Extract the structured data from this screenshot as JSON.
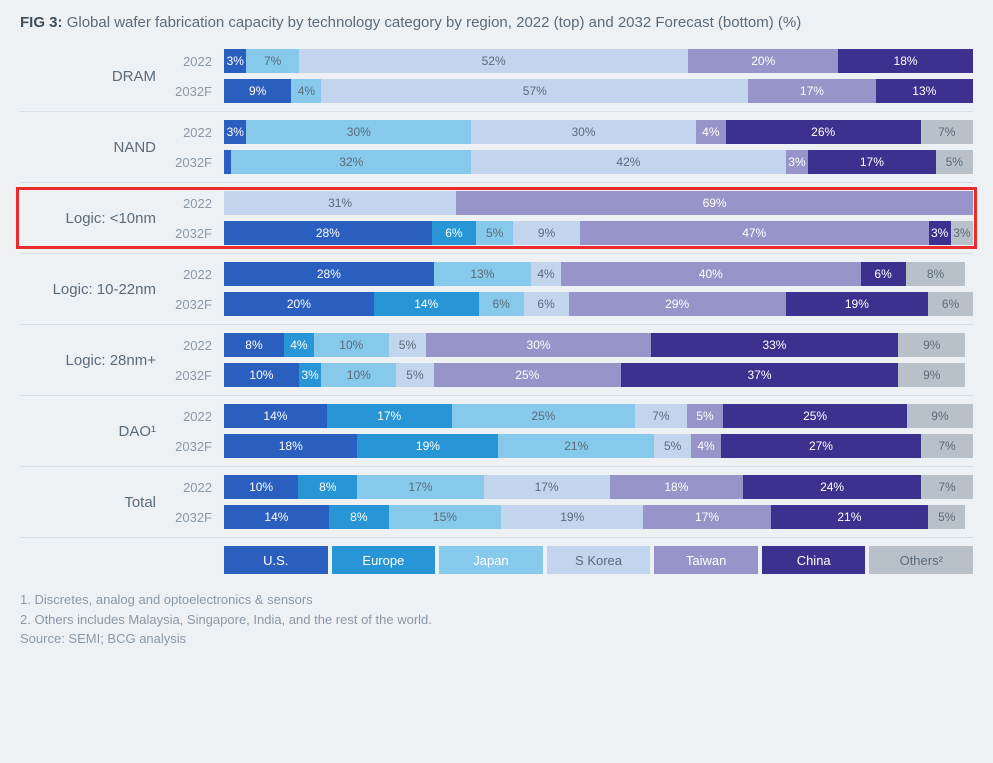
{
  "title_prefix": "FIG 3:",
  "title_text": "Global wafer fabrication capacity by technology category by region, 2022 (top) and 2032 Forecast (bottom) (%)",
  "colors": {
    "us": "#2b5fbf",
    "europe": "#2795d6",
    "japan": "#87c9eb",
    "skorea": "#c3d4ed",
    "taiwan": "#9694c9",
    "china": "#3d318f",
    "others": "#b8c0c9",
    "background": "#eef1f4",
    "highlight_border": "#e92b2b",
    "divider": "#d8dee4",
    "text_dark": "#5a6b7a",
    "text_light": "#ffffff"
  },
  "regions": [
    {
      "key": "us",
      "label": "U.S.",
      "light_text": false
    },
    {
      "key": "europe",
      "label": "Europe",
      "light_text": false
    },
    {
      "key": "japan",
      "label": "Japan",
      "light_text": false
    },
    {
      "key": "skorea",
      "label": "S Korea",
      "light_text": true
    },
    {
      "key": "taiwan",
      "label": "Taiwan",
      "light_text": false
    },
    {
      "key": "china",
      "label": "China",
      "light_text": false
    },
    {
      "key": "others",
      "label": "Others²",
      "light_text": true
    }
  ],
  "value_label_min_percent": 3,
  "light_text_segments": [
    "japan",
    "skorea",
    "others"
  ],
  "categories": [
    {
      "label": "DRAM",
      "highlighted": false,
      "rows": [
        {
          "year": "2022",
          "values": {
            "us": 3,
            "europe": 0,
            "japan": 7,
            "skorea": 52,
            "taiwan": 20,
            "china": 18,
            "others": 0
          }
        },
        {
          "year": "2032F",
          "values": {
            "us": 9,
            "europe": 0,
            "japan": 4,
            "skorea": 57,
            "taiwan": 17,
            "china": 13,
            "others": 0
          }
        }
      ]
    },
    {
      "label": "NAND",
      "highlighted": false,
      "rows": [
        {
          "year": "2022",
          "values": {
            "us": 3,
            "europe": 0,
            "japan": 30,
            "skorea": 30,
            "taiwan": 4,
            "china": 26,
            "others": 7
          }
        },
        {
          "year": "2032F",
          "values": {
            "us": 1,
            "europe": 0,
            "japan": 32,
            "skorea": 42,
            "taiwan": 3,
            "china": 17,
            "others": 5
          }
        }
      ]
    },
    {
      "label": "Logic: <10nm",
      "highlighted": true,
      "rows": [
        {
          "year": "2022",
          "values": {
            "us": 0,
            "europe": 0,
            "japan": 0,
            "skorea": 31,
            "taiwan": 69,
            "china": 0,
            "others": 0
          }
        },
        {
          "year": "2032F",
          "values": {
            "us": 28,
            "europe": 6,
            "japan": 5,
            "skorea": 9,
            "taiwan": 47,
            "china": 3,
            "others": 3
          }
        }
      ]
    },
    {
      "label": "Logic: 10-22nm",
      "highlighted": false,
      "rows": [
        {
          "year": "2022",
          "values": {
            "us": 28,
            "europe": 0,
            "japan": 13,
            "skorea": 4,
            "taiwan": 40,
            "china": 6,
            "others": 8
          }
        },
        {
          "year": "2032F",
          "values": {
            "us": 20,
            "europe": 14,
            "japan": 6,
            "skorea": 6,
            "taiwan": 29,
            "china": 19,
            "others": 6
          }
        }
      ]
    },
    {
      "label": "Logic: 28nm+",
      "highlighted": false,
      "rows": [
        {
          "year": "2022",
          "values": {
            "us": 8,
            "europe": 4,
            "japan": 10,
            "skorea": 5,
            "taiwan": 30,
            "china": 33,
            "others": 9
          }
        },
        {
          "year": "2032F",
          "values": {
            "us": 10,
            "europe": 3,
            "japan": 10,
            "skorea": 5,
            "taiwan": 25,
            "china": 37,
            "others": 9
          }
        }
      ]
    },
    {
      "label": "DAO¹",
      "highlighted": false,
      "rows": [
        {
          "year": "2022",
          "values": {
            "us": 14,
            "europe": 17,
            "japan": 25,
            "skorea": 7,
            "taiwan": 5,
            "china": 25,
            "others": 9
          }
        },
        {
          "year": "2032F",
          "values": {
            "us": 18,
            "europe": 19,
            "japan": 21,
            "skorea": 5,
            "taiwan": 4,
            "china": 27,
            "others": 7
          }
        }
      ]
    },
    {
      "label": "Total",
      "highlighted": false,
      "rows": [
        {
          "year": "2022",
          "values": {
            "us": 10,
            "europe": 8,
            "japan": 17,
            "skorea": 17,
            "taiwan": 18,
            "china": 24,
            "others": 7
          }
        },
        {
          "year": "2032F",
          "values": {
            "us": 14,
            "europe": 8,
            "japan": 15,
            "skorea": 19,
            "taiwan": 17,
            "china": 21,
            "others": 5
          }
        }
      ]
    }
  ],
  "footnotes": [
    "1. Discretes, analog and optoelectronics & sensors",
    "2. Others includes Malaysia, Singapore, India, and the rest of the world.",
    "Source: SEMI; BCG analysis"
  ]
}
